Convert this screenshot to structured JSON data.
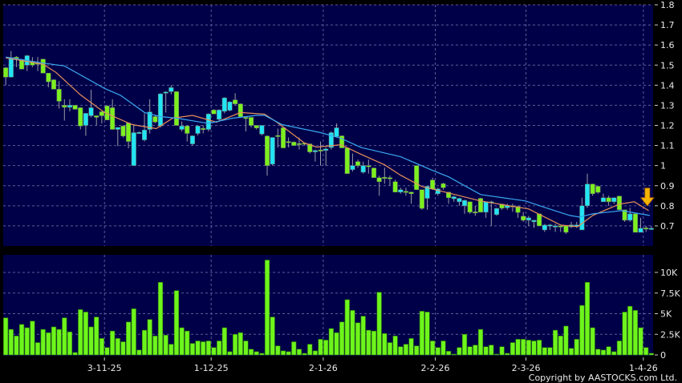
{
  "chart_data": [
    {
      "type": "candlestick",
      "panel": "price",
      "ylim": [
        0.6,
        1.8
      ],
      "y_ticks": [
        "1.8",
        "1.7",
        "1.6",
        "1.5",
        "1.4",
        "1.3",
        "1.2",
        "1.1",
        "1",
        "0.9",
        "0.8",
        "0.7"
      ],
      "grid": true,
      "colors": {
        "background": "#000048",
        "up": "#22e4f4",
        "down": "#7cf01e",
        "ma_short": "#e8905a",
        "ma_long": "#3aa8f0",
        "marker": "#f4b400"
      },
      "ohlc": [
        [
          1.487,
          1.49,
          1.4,
          1.44
        ],
        [
          1.44,
          1.57,
          1.44,
          1.537
        ],
        [
          1.54,
          1.545,
          1.49,
          1.535
        ],
        [
          1.528,
          1.53,
          1.48,
          1.48
        ],
        [
          1.5,
          1.55,
          1.47,
          1.547
        ],
        [
          1.516,
          1.54,
          1.49,
          1.5
        ],
        [
          1.51,
          1.54,
          1.47,
          1.505
        ],
        [
          1.53,
          1.53,
          1.46,
          1.46
        ],
        [
          1.46,
          1.46,
          1.39,
          1.417
        ],
        [
          1.427,
          1.43,
          1.38,
          1.38
        ],
        [
          1.38,
          1.42,
          1.284,
          1.32
        ],
        [
          1.3,
          1.33,
          1.224,
          1.29
        ],
        [
          1.29,
          1.33,
          1.27,
          1.3
        ],
        [
          1.3,
          1.3,
          1.28,
          1.28
        ],
        [
          1.288,
          1.29,
          1.18,
          1.197
        ],
        [
          1.2,
          1.26,
          1.148,
          1.26
        ],
        [
          1.248,
          1.377,
          1.24,
          1.288
        ],
        [
          1.248,
          1.25,
          1.2,
          1.24
        ],
        [
          1.268,
          1.27,
          1.21,
          1.248
        ],
        [
          1.297,
          1.3,
          1.227,
          1.227
        ],
        [
          1.288,
          1.33,
          1.18,
          1.18
        ],
        [
          1.18,
          1.19,
          1.097,
          1.19
        ],
        [
          1.197,
          1.2,
          1.14,
          1.147
        ],
        [
          1.212,
          1.212,
          1.086,
          1.12
        ],
        [
          1.0,
          1.2,
          1.0,
          1.164
        ],
        [
          1.165,
          1.17,
          1.16,
          1.165
        ],
        [
          1.128,
          1.26,
          1.12,
          1.177
        ],
        [
          1.18,
          1.33,
          1.16,
          1.267
        ],
        [
          1.244,
          1.25,
          1.21,
          1.217
        ],
        [
          1.197,
          1.36,
          1.19,
          1.357
        ],
        [
          1.36,
          1.37,
          1.264,
          1.366
        ],
        [
          1.368,
          1.4,
          1.355,
          1.388
        ],
        [
          1.368,
          1.37,
          1.2,
          1.2
        ],
        [
          1.18,
          1.22,
          1.17,
          1.197
        ],
        [
          1.197,
          1.2,
          1.12,
          1.16
        ],
        [
          1.108,
          1.15,
          1.1,
          1.148
        ],
        [
          1.16,
          1.2,
          1.15,
          1.197
        ],
        [
          1.185,
          1.2,
          1.16,
          1.18
        ],
        [
          1.18,
          1.26,
          1.17,
          1.257
        ],
        [
          1.277,
          1.28,
          1.257,
          1.257
        ],
        [
          1.23,
          1.28,
          1.22,
          1.277
        ],
        [
          1.27,
          1.34,
          1.26,
          1.337
        ],
        [
          1.275,
          1.32,
          1.27,
          1.317
        ],
        [
          1.327,
          1.36,
          1.3,
          1.307
        ],
        [
          1.307,
          1.31,
          1.24,
          1.243
        ],
        [
          1.24,
          1.245,
          1.17,
          1.238
        ],
        [
          1.24,
          1.24,
          1.19,
          1.2
        ],
        [
          1.2,
          1.2,
          1.18,
          1.187
        ],
        [
          1.157,
          1.2,
          1.15,
          1.2
        ],
        [
          1.147,
          1.15,
          0.95,
          1.0
        ],
        [
          1.007,
          1.14,
          1.0,
          1.14
        ],
        [
          1.15,
          1.184,
          1.09,
          1.145
        ],
        [
          1.188,
          1.19,
          1.088,
          1.088
        ],
        [
          1.12,
          1.14,
          1.09,
          1.118
        ],
        [
          1.117,
          1.12,
          1.1,
          1.1
        ],
        [
          1.11,
          1.14,
          1.08,
          1.108
        ],
        [
          1.112,
          1.115,
          1.1,
          1.108
        ],
        [
          1.108,
          1.11,
          1.06,
          1.068
        ],
        [
          1.068,
          1.08,
          1.02,
          1.075
        ],
        [
          1.078,
          1.12,
          1.0,
          1.075
        ],
        [
          1.075,
          1.09,
          1.0,
          1.083
        ],
        [
          1.09,
          1.17,
          1.08,
          1.164
        ],
        [
          1.144,
          1.21,
          1.14,
          1.188
        ],
        [
          1.148,
          1.15,
          1.088,
          1.088
        ],
        [
          1.088,
          1.09,
          0.96,
          0.96
        ],
        [
          0.98,
          1.06,
          0.97,
          1.0
        ],
        [
          1.02,
          1.03,
          0.99,
          1.0
        ],
        [
          0.967,
          1.02,
          0.96,
          1.0
        ],
        [
          1.0,
          1.03,
          0.96,
          0.998
        ],
        [
          0.988,
          0.99,
          0.94,
          0.94
        ],
        [
          0.94,
          0.95,
          0.85,
          0.92
        ],
        [
          0.942,
          0.99,
          0.91,
          0.94
        ],
        [
          0.94,
          0.95,
          0.9,
          0.935
        ],
        [
          0.92,
          0.93,
          0.868,
          0.868
        ],
        [
          0.868,
          0.89,
          0.86,
          0.88
        ],
        [
          0.872,
          0.89,
          0.85,
          0.87
        ],
        [
          0.868,
          0.87,
          0.81,
          0.86
        ],
        [
          1.0,
          1.0,
          0.88,
          0.88
        ],
        [
          0.88,
          0.88,
          0.78,
          0.787
        ],
        [
          0.837,
          0.9,
          0.78,
          0.897
        ],
        [
          0.928,
          0.94,
          0.88,
          0.884
        ],
        [
          0.86,
          0.89,
          0.85,
          0.884
        ],
        [
          0.91,
          0.915,
          0.88,
          0.89
        ],
        [
          0.868,
          0.87,
          0.81,
          0.84
        ],
        [
          0.835,
          0.85,
          0.82,
          0.845
        ],
        [
          0.82,
          0.84,
          0.8,
          0.837
        ],
        [
          0.8,
          0.83,
          0.76,
          0.827
        ],
        [
          0.82,
          0.82,
          0.76,
          0.768
        ],
        [
          0.77,
          0.8,
          0.75,
          0.768
        ],
        [
          0.837,
          0.84,
          0.768,
          0.768
        ],
        [
          0.768,
          0.82,
          0.74,
          0.82
        ],
        [
          0.815,
          0.825,
          0.7,
          0.82
        ],
        [
          0.756,
          0.79,
          0.75,
          0.787
        ],
        [
          0.808,
          0.81,
          0.78,
          0.788
        ],
        [
          0.79,
          0.81,
          0.78,
          0.8
        ],
        [
          0.8,
          0.81,
          0.77,
          0.798
        ],
        [
          0.797,
          0.8,
          0.74,
          0.767
        ],
        [
          0.748,
          0.77,
          0.72,
          0.728
        ],
        [
          0.728,
          0.75,
          0.7,
          0.74
        ],
        [
          0.72,
          0.73,
          0.69,
          0.728
        ],
        [
          0.76,
          0.76,
          0.7,
          0.7
        ],
        [
          0.68,
          0.71,
          0.67,
          0.704
        ],
        [
          0.7,
          0.71,
          0.68,
          0.705
        ],
        [
          0.7,
          0.71,
          0.67,
          0.7
        ],
        [
          0.7,
          0.7,
          0.67,
          0.698
        ],
        [
          0.7,
          0.7,
          0.66,
          0.668
        ],
        [
          0.695,
          0.72,
          0.69,
          0.705
        ],
        [
          0.697,
          0.72,
          0.69,
          0.705
        ],
        [
          0.68,
          0.84,
          0.68,
          0.8
        ],
        [
          0.8,
          0.96,
          0.79,
          0.908
        ],
        [
          0.908,
          0.91,
          0.85,
          0.86
        ],
        [
          0.897,
          0.9,
          0.86,
          0.867
        ],
        [
          0.82,
          0.86,
          0.82,
          0.84
        ],
        [
          0.84,
          0.85,
          0.8,
          0.82
        ],
        [
          0.82,
          0.84,
          0.81,
          0.84
        ],
        [
          0.848,
          0.85,
          0.78,
          0.78
        ],
        [
          0.78,
          0.78,
          0.72,
          0.728
        ],
        [
          0.728,
          0.79,
          0.72,
          0.76
        ],
        [
          0.76,
          0.76,
          0.668,
          0.668
        ],
        [
          0.668,
          0.74,
          0.668,
          0.688
        ],
        [
          0.69,
          0.7,
          0.67,
          0.688
        ],
        [
          0.685,
          0.7,
          0.68,
          0.688
        ]
      ],
      "moving_averages": [
        {
          "color": "#e8905a",
          "points": [
            [
              1,
              1.536
            ],
            [
              8,
              1.504
            ],
            [
              10.4,
              1.464
            ],
            [
              15,
              1.352
            ],
            [
              19.5,
              1.264
            ],
            [
              24.7,
              1.204
            ],
            [
              29.2,
              1.184
            ],
            [
              32.3,
              1.236
            ],
            [
              36,
              1.25
            ],
            [
              40.5,
              1.216
            ],
            [
              45,
              1.264
            ],
            [
              49.5,
              1.256
            ],
            [
              51.8,
              1.216
            ],
            [
              57,
              1.112
            ],
            [
              59.3,
              1.092
            ],
            [
              63.8,
              1.104
            ],
            [
              67.6,
              1.056
            ],
            [
              72,
              1.004
            ],
            [
              75,
              0.952
            ],
            [
              79,
              0.896
            ],
            [
              84,
              0.864
            ],
            [
              90,
              0.824
            ],
            [
              99,
              0.784
            ],
            [
              105,
              0.704
            ],
            [
              108.2,
              0.696
            ],
            [
              111,
              0.752
            ],
            [
              116,
              0.808
            ],
            [
              118.8,
              0.82
            ],
            [
              121.5,
              0.776
            ]
          ]
        },
        {
          "color": "#3aa8f0",
          "points": [
            [
              1,
              1.54
            ],
            [
              8,
              1.51
            ],
            [
              12,
              1.496
            ],
            [
              19.5,
              1.384
            ],
            [
              22.5,
              1.35
            ],
            [
              27,
              1.264
            ],
            [
              30,
              1.244
            ],
            [
              33,
              1.236
            ],
            [
              39,
              1.21
            ],
            [
              43.5,
              1.236
            ],
            [
              48,
              1.25
            ],
            [
              49.5,
              1.25
            ],
            [
              52.8,
              1.204
            ],
            [
              60,
              1.164
            ],
            [
              63.8,
              1.136
            ],
            [
              67.6,
              1.09
            ],
            [
              75,
              1.044
            ],
            [
              81,
              0.976
            ],
            [
              84,
              0.944
            ],
            [
              90,
              0.856
            ],
            [
              98.4,
              0.824
            ],
            [
              102,
              0.792
            ],
            [
              106.7,
              0.752
            ],
            [
              108.5,
              0.744
            ],
            [
              111,
              0.76
            ],
            [
              116.4,
              0.776
            ],
            [
              121.7,
              0.752
            ]
          ]
        }
      ],
      "marker": {
        "type": "down-arrow",
        "index": 122,
        "value": 0.8
      }
    },
    {
      "type": "bar",
      "panel": "volume",
      "ylim": [
        0,
        12
      ],
      "y_ticks": [
        {
          "label": "10K",
          "value": 10
        },
        {
          "label": "7.5K",
          "value": 7.5
        },
        {
          "label": "5K",
          "value": 5
        },
        {
          "label": "2.5K",
          "value": 2.5
        },
        {
          "label": "0",
          "value": 0
        }
      ],
      "grid": true,
      "colors": {
        "bar": "#6ef51c",
        "outline": "#2c7a08"
      },
      "values_k": [
        4.5,
        3.1,
        2.3,
        3.7,
        3.3,
        4.1,
        1.5,
        3.1,
        2.7,
        3.4,
        3.1,
        4.5,
        2.8,
        0.3,
        5.5,
        5.2,
        3.4,
        4.6,
        2.0,
        0.9,
        2.9,
        2.0,
        1.6,
        4.0,
        5.6,
        0.6,
        3.0,
        4.3,
        2.3,
        8.8,
        2.4,
        1.3,
        7.8,
        3.3,
        2.9,
        1.4,
        1.7,
        1.6,
        1.7,
        0.9,
        1.7,
        3.3,
        0.4,
        2.5,
        2.7,
        1.7,
        0.7,
        0.4,
        0.2,
        11.5,
        4.6,
        1.1,
        0.5,
        0.4,
        1.6,
        0.7,
        0.2,
        1.3,
        0.5,
        1.9,
        1.8,
        3.2,
        2.7,
        4.0,
        6.7,
        5.4,
        3.9,
        4.7,
        3.0,
        2.9,
        7.6,
        2.6,
        1.5,
        2.3,
        1.0,
        1.3,
        2.0,
        1.1,
        5.3,
        5.2,
        1.7,
        0.9,
        1.7,
        0.45,
        0.1,
        0.9,
        2.5,
        1.0,
        1.2,
        3.1,
        1.0,
        1.2,
        0.1,
        1.0,
        0.2,
        1.5,
        1.9,
        1.9,
        1.8,
        1.7,
        1.8,
        0.9,
        0.9,
        3.0,
        2.3,
        3.5,
        0.8,
        1.9,
        6.0,
        8.8,
        3.3,
        0.7,
        0.6,
        1.0,
        0.4,
        1.7,
        5.2,
        5.9,
        5.4,
        3.3,
        0.9,
        0.2
      ]
    }
  ],
  "x_ticks": [
    {
      "label": "3-11-25",
      "index": 20
    },
    {
      "label": "1-12-25",
      "index": 40
    },
    {
      "label": "2-1-26",
      "index": 61
    },
    {
      "label": "2-2-26",
      "index": 82
    },
    {
      "label": "2-3-26",
      "index": 99
    },
    {
      "label": "1-4-26",
      "index": 121
    }
  ],
  "copyright": "Copyright by AASTOCKS.com Ltd."
}
